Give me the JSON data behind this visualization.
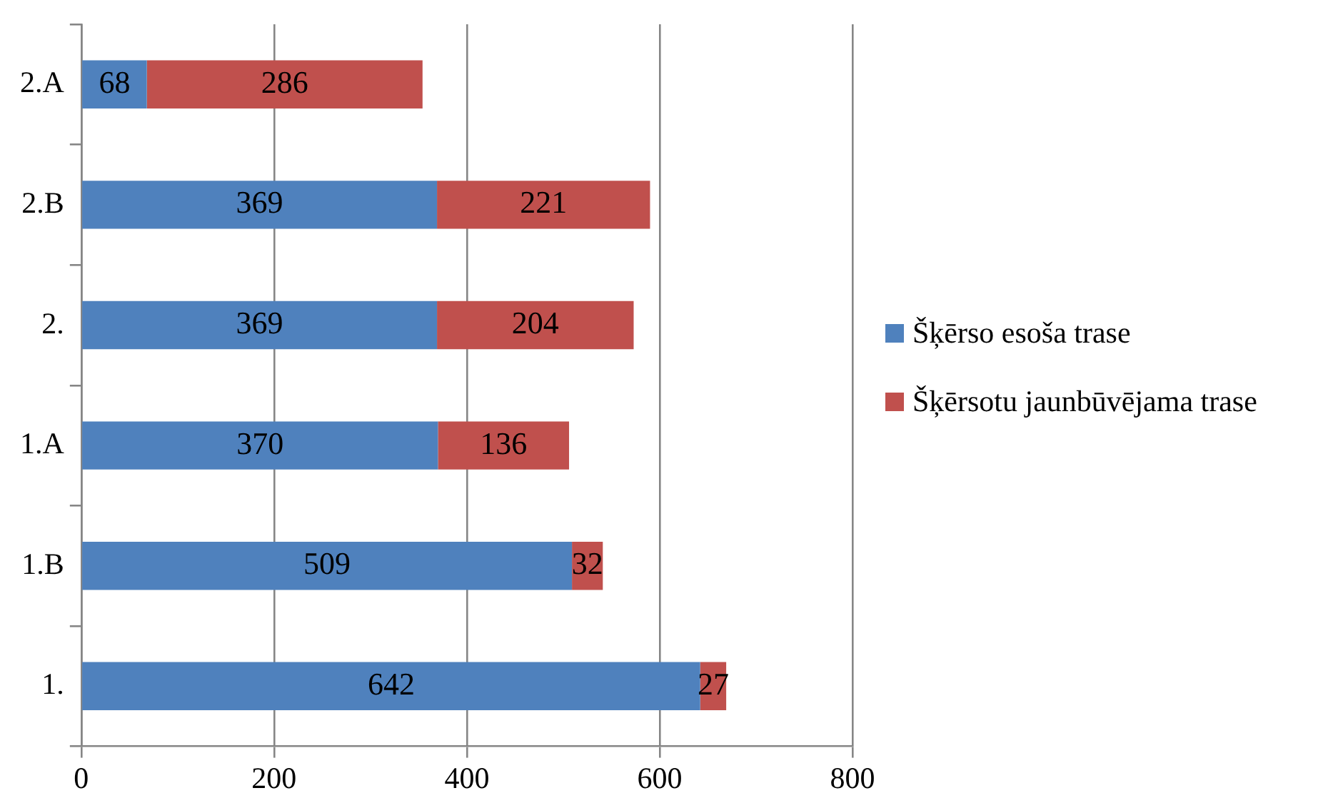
{
  "chart_data": {
    "type": "bar",
    "orientation": "horizontal",
    "stacked": true,
    "categories": [
      "2.A",
      "2.B",
      "2.",
      "1.A",
      "1.B",
      "1."
    ],
    "series": [
      {
        "name": "Šķērso esoša trase",
        "color": "#4f81bd",
        "values": [
          68,
          369,
          369,
          370,
          509,
          642
        ]
      },
      {
        "name": "Šķērsotu jaunbūvējama trase",
        "color": "#c0504d",
        "values": [
          286,
          221,
          204,
          136,
          32,
          27
        ]
      }
    ],
    "xlim": [
      0,
      800
    ],
    "xticks": [
      0,
      200,
      400,
      600,
      800
    ],
    "grid": "x",
    "legend": "right",
    "data_labels": true
  }
}
